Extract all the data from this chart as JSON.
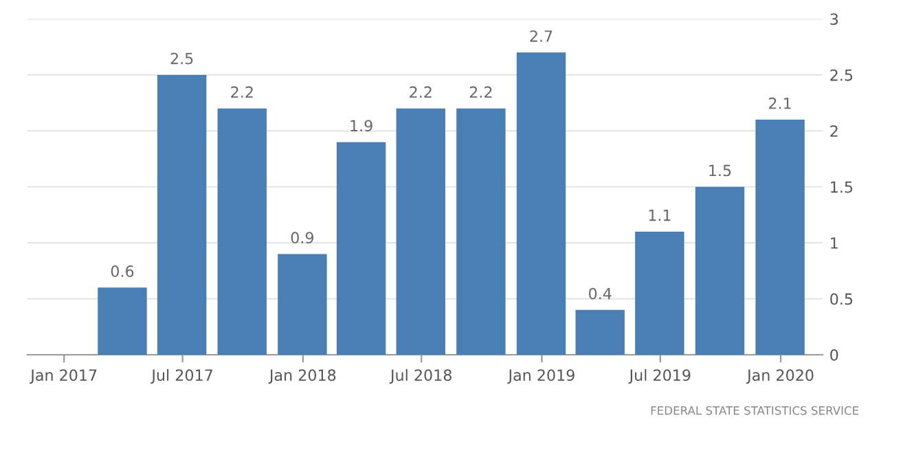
{
  "chart_data": {
    "type": "bar",
    "x": [
      "2017-03-31",
      "2017-06-30",
      "2017-09-30",
      "2017-12-31",
      "2018-03-31",
      "2018-06-30",
      "2018-09-30",
      "2018-12-31",
      "2019-03-31",
      "2019-06-30",
      "2019-09-30",
      "2019-12-31"
    ],
    "values": [
      0.6,
      2.5,
      2.2,
      0.9,
      1.9,
      2.2,
      2.2,
      2.7,
      0.4,
      1.1,
      1.5,
      2.1
    ],
    "color": "#4a7fb5",
    "data_labels": true,
    "grid": "y",
    "xlim": [
      "2016-11-06",
      "2020-03-05"
    ],
    "xticks": [
      {
        "value": "2017-01-01",
        "label": "Jan 2017"
      },
      {
        "value": "2017-07-01",
        "label": "Jul 2017"
      },
      {
        "value": "2018-01-01",
        "label": "Jan 2018"
      },
      {
        "value": "2018-07-01",
        "label": "Jul 2018"
      },
      {
        "value": "2019-01-01",
        "label": "Jan 2019"
      },
      {
        "value": "2019-07-01",
        "label": "Jul 2019"
      },
      {
        "value": "2020-01-01",
        "label": "Jan 2020"
      }
    ],
    "ylim": [
      0,
      3
    ],
    "yticks": [
      0,
      0.5,
      1,
      1.5,
      2,
      2.5,
      3
    ],
    "annotations": [
      "FEDERAL STATE STATISTICS SERVICE"
    ]
  }
}
